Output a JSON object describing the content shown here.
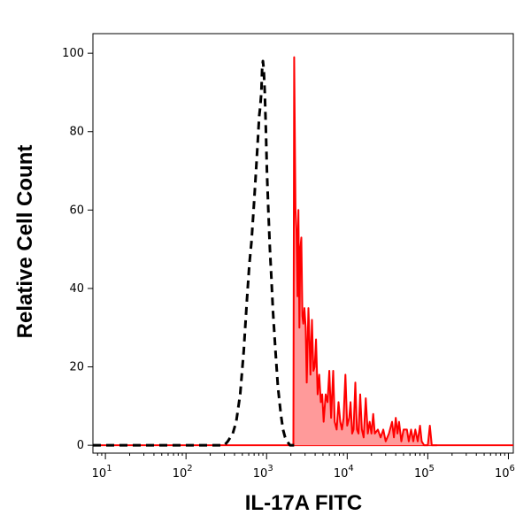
{
  "chart_data": {
    "type": "area",
    "xlabel": "IL-17A FITC",
    "ylabel": "Relative Cell Count",
    "x_scale": "log",
    "xlim": [
      7,
      1150000
    ],
    "ylim": [
      -2,
      105
    ],
    "x_ticks": [
      {
        "value": 10,
        "base": "10",
        "exp": "1"
      },
      {
        "value": 100,
        "base": "10",
        "exp": "2"
      },
      {
        "value": 1000,
        "base": "10",
        "exp": "3"
      },
      {
        "value": 10000,
        "base": "10",
        "exp": "4"
      },
      {
        "value": 100000,
        "base": "10",
        "exp": "5"
      },
      {
        "value": 1000000,
        "base": "10",
        "exp": "6"
      }
    ],
    "y_ticks": [
      0,
      20,
      40,
      60,
      80,
      100
    ],
    "grid": false,
    "colors": {
      "stained": "#ff0000",
      "stained_fill": "#ff9a9a",
      "control": "#000000"
    },
    "series": [
      {
        "style": "dashed-line",
        "color": "#000000",
        "points": [
          [
            7,
            0
          ],
          [
            300,
            0
          ],
          [
            330,
            1
          ],
          [
            380,
            3
          ],
          [
            420,
            6
          ],
          [
            470,
            13
          ],
          [
            520,
            24
          ],
          [
            570,
            37
          ],
          [
            610,
            46
          ],
          [
            650,
            52
          ],
          [
            700,
            62
          ],
          [
            740,
            70
          ],
          [
            780,
            78
          ],
          [
            810,
            84
          ],
          [
            830,
            86
          ],
          [
            860,
            90
          ],
          [
            880,
            96
          ],
          [
            900,
            98
          ],
          [
            920,
            96
          ],
          [
            950,
            90
          ],
          [
            980,
            80
          ],
          [
            1010,
            70
          ],
          [
            1050,
            60
          ],
          [
            1100,
            50
          ],
          [
            1150,
            42
          ],
          [
            1200,
            34
          ],
          [
            1280,
            25
          ],
          [
            1380,
            15
          ],
          [
            1500,
            8
          ],
          [
            1600,
            4
          ],
          [
            1700,
            2
          ],
          [
            1800,
            1
          ],
          [
            1950,
            0
          ],
          [
            2200,
            0
          ]
        ]
      },
      {
        "style": "filled-line",
        "color": "#ff0000",
        "points": [
          [
            2150,
            0
          ],
          [
            2200,
            99
          ],
          [
            2280,
            60
          ],
          [
            2350,
            55
          ],
          [
            2420,
            38
          ],
          [
            2480,
            60
          ],
          [
            2550,
            30
          ],
          [
            2620,
            50
          ],
          [
            2700,
            53
          ],
          [
            2780,
            33
          ],
          [
            2850,
            31
          ],
          [
            2950,
            35
          ],
          [
            3050,
            30
          ],
          [
            3150,
            16
          ],
          [
            3300,
            35
          ],
          [
            3400,
            27
          ],
          [
            3500,
            18
          ],
          [
            3650,
            32
          ],
          [
            3800,
            19
          ],
          [
            3950,
            20
          ],
          [
            4100,
            27
          ],
          [
            4300,
            13
          ],
          [
            4500,
            18
          ],
          [
            4700,
            11
          ],
          [
            4900,
            13
          ],
          [
            5100,
            6
          ],
          [
            5400,
            13
          ],
          [
            5700,
            11
          ],
          [
            6000,
            19
          ],
          [
            6300,
            7
          ],
          [
            6700,
            19
          ],
          [
            7000,
            6
          ],
          [
            7400,
            4
          ],
          [
            7800,
            11
          ],
          [
            8200,
            6
          ],
          [
            8600,
            4
          ],
          [
            9000,
            7
          ],
          [
            9500,
            18
          ],
          [
            10000,
            5
          ],
          [
            10600,
            7
          ],
          [
            11000,
            11
          ],
          [
            11500,
            3
          ],
          [
            12000,
            4
          ],
          [
            12600,
            16
          ],
          [
            13200,
            4
          ],
          [
            13800,
            3
          ],
          [
            14500,
            13
          ],
          [
            15200,
            4
          ],
          [
            16000,
            2
          ],
          [
            17000,
            12
          ],
          [
            18000,
            3
          ],
          [
            19000,
            6
          ],
          [
            20000,
            3
          ],
          [
            21000,
            8
          ],
          [
            22000,
            3
          ],
          [
            24000,
            4
          ],
          [
            26000,
            2
          ],
          [
            28000,
            4
          ],
          [
            30000,
            1
          ],
          [
            33000,
            3
          ],
          [
            36000,
            6
          ],
          [
            38000,
            2
          ],
          [
            40000,
            7
          ],
          [
            42000,
            3
          ],
          [
            44000,
            6
          ],
          [
            47000,
            1
          ],
          [
            50000,
            4
          ],
          [
            55000,
            4
          ],
          [
            58000,
            1
          ],
          [
            62000,
            4
          ],
          [
            66000,
            1
          ],
          [
            70000,
            4
          ],
          [
            75000,
            1
          ],
          [
            80000,
            5
          ],
          [
            84000,
            1
          ],
          [
            90000,
            0
          ],
          [
            100000,
            0
          ],
          [
            106000,
            5
          ],
          [
            112000,
            0
          ],
          [
            130000,
            0
          ]
        ]
      }
    ]
  }
}
